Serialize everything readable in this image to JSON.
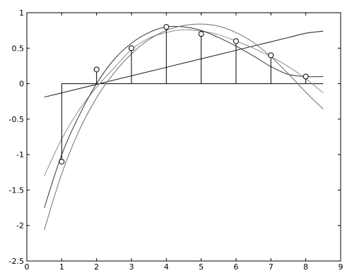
{
  "chart_data": {
    "type": "line",
    "title": "",
    "xlabel": "",
    "ylabel": "",
    "xlim": [
      0,
      9
    ],
    "ylim": [
      -2.5,
      1
    ],
    "grid": false,
    "legend": "none",
    "x_ticks": [
      {
        "value": 0,
        "label": "0"
      },
      {
        "value": 1,
        "label": "1"
      },
      {
        "value": 2,
        "label": "2"
      },
      {
        "value": 3,
        "label": "3"
      },
      {
        "value": 4,
        "label": "4"
      },
      {
        "value": 5,
        "label": "5"
      },
      {
        "value": 6,
        "label": "6"
      },
      {
        "value": 7,
        "label": "7"
      },
      {
        "value": 8,
        "label": "8"
      },
      {
        "value": 9,
        "label": "9"
      }
    ],
    "y_ticks": [
      {
        "value": 1,
        "label": "1"
      },
      {
        "value": 0.5,
        "label": "0.5"
      },
      {
        "value": 0,
        "label": "0"
      },
      {
        "value": -0.5,
        "label": "-0.5"
      },
      {
        "value": -1,
        "label": "-1"
      },
      {
        "value": -1.5,
        "label": "-1.5"
      },
      {
        "value": -2,
        "label": "-2"
      },
      {
        "value": -2.5,
        "label": "-2.5"
      }
    ],
    "stem_data": {
      "x": [
        1,
        2,
        3,
        4,
        5,
        6,
        7,
        8
      ],
      "y": [
        -1.1,
        0.2,
        0.5,
        0.8,
        0.7,
        0.6,
        0.4,
        0.1
      ],
      "baseline": 0,
      "baseline_x_range": [
        1,
        8.5
      ],
      "color": "#000000"
    },
    "series": [
      {
        "x": [
          0.5,
          1,
          1.5,
          2,
          2.5,
          3,
          3.5,
          4,
          4.5,
          5,
          5.5,
          6,
          6.5,
          7,
          7.5,
          8,
          8.5
        ],
        "y": [
          -0.19,
          -0.13,
          -0.07,
          -0.01,
          0.05,
          0.11,
          0.17,
          0.23,
          0.29,
          0.35,
          0.41,
          0.47,
          0.53,
          0.59,
          0.65,
          0.71,
          0.74
        ],
        "color": "#1a1a1a"
      },
      {
        "x": [
          0.5,
          1,
          1.5,
          2,
          2.5,
          3,
          3.5,
          4,
          4.5,
          5,
          5.5,
          6,
          6.5,
          7,
          7.5,
          8,
          8.5
        ],
        "y": [
          -1.3,
          -0.78,
          -0.37,
          -0.05,
          0.22,
          0.48,
          0.64,
          0.72,
          0.76,
          0.74,
          0.69,
          0.6,
          0.5,
          0.38,
          0.24,
          0.07,
          -0.13
        ],
        "color": "#8c8c8c"
      },
      {
        "x": [
          0.5,
          1,
          1.5,
          2,
          2.5,
          3,
          3.5,
          4,
          4.5,
          5,
          5.5,
          6,
          6.5,
          7,
          7.5,
          8,
          8.5
        ],
        "y": [
          -1.75,
          -1.0,
          -0.45,
          0.0,
          0.34,
          0.57,
          0.72,
          0.8,
          0.8,
          0.75,
          0.65,
          0.53,
          0.39,
          0.24,
          0.13,
          0.1,
          0.1
        ],
        "color": "#333333"
      },
      {
        "x": [
          0.5,
          1,
          1.5,
          2,
          2.5,
          3,
          3.5,
          4,
          4.5,
          5,
          5.5,
          6,
          6.5,
          7,
          7.5,
          8,
          8.5
        ],
        "y": [
          -2.06,
          -1.27,
          -0.66,
          -0.2,
          0.15,
          0.42,
          0.62,
          0.75,
          0.82,
          0.84,
          0.81,
          0.72,
          0.58,
          0.38,
          0.14,
          -0.12,
          -0.36
        ],
        "color": "#707070"
      }
    ]
  }
}
